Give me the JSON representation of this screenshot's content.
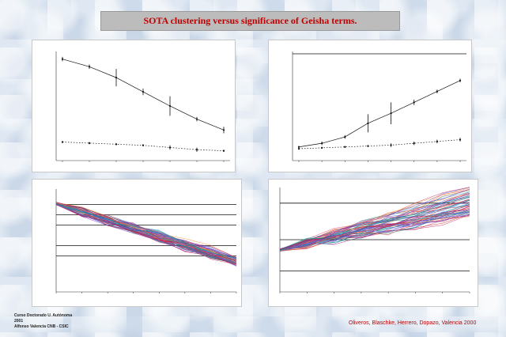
{
  "title": "SOTA clustering versus significance of Geisha terms.",
  "footer": {
    "line1": "Curso Doctorado U. Autónoma",
    "line2": "2001",
    "line3": "Alfonso Valencia CNB - CSIC",
    "credit": "Oliveros, Blaschke, Herrero, Dopazo, Valencia 2000"
  },
  "colors": {
    "title_text": "#c00000",
    "line": "#111111",
    "profiles": [
      "#e8336b",
      "#3b5fd9",
      "#d11a1a",
      "#2a9d8f",
      "#7b2cbf",
      "#f28c28",
      "#1e88e5",
      "#8e44ad",
      "#c2185b",
      "#00897b"
    ]
  },
  "chart_data": [
    {
      "type": "line",
      "x": [
        1,
        2,
        3,
        4,
        5,
        6,
        7
      ],
      "series": [
        {
          "values": [
            9.3,
            8.6,
            7.6,
            6.3,
            5.0,
            3.8,
            2.8
          ],
          "err": [
            0.2,
            0.2,
            0.8,
            0.3,
            0.9,
            0.2,
            0.3
          ]
        },
        {
          "values": [
            1.7,
            1.6,
            1.5,
            1.4,
            1.2,
            1.0,
            0.9
          ],
          "err": [
            0.1,
            0.1,
            0.1,
            0.1,
            0.2,
            0.2,
            0.1
          ]
        }
      ],
      "ylim": [
        0,
        10
      ]
    },
    {
      "type": "line",
      "x": [
        1,
        2,
        3,
        4,
        5,
        6,
        7,
        8
      ],
      "series": [
        {
          "values": [
            1.5,
            1.9,
            2.6,
            4.1,
            5.2,
            6.4,
            7.6,
            8.8
          ],
          "err": [
            0.1,
            0.2,
            0.2,
            1.0,
            1.2,
            0.3,
            0.2,
            0.2
          ]
        },
        {
          "values": [
            1.3,
            1.4,
            1.5,
            1.6,
            1.7,
            1.9,
            2.1,
            2.3
          ],
          "err": [
            0.1,
            0.1,
            0.1,
            0.1,
            0.2,
            0.2,
            0.2,
            0.2
          ]
        }
      ],
      "ylim": [
        0,
        12
      ]
    },
    {
      "type": "line",
      "x": [
        1,
        2,
        3,
        4,
        5,
        6,
        7,
        8
      ],
      "hlines": [
        8.5,
        7.5,
        6.5,
        4.5,
        3.5
      ],
      "ylim": [
        0,
        10
      ],
      "start": 8.6,
      "ends": [
        2.6,
        3.4
      ]
    },
    {
      "type": "line",
      "x": [
        1,
        2,
        3,
        4,
        5,
        6,
        7,
        8
      ],
      "hlines": [
        8.5,
        5.0,
        2.0
      ],
      "ylim": [
        0,
        10
      ],
      "start": 4.0,
      "ends": [
        7.2,
        10.0
      ]
    }
  ]
}
